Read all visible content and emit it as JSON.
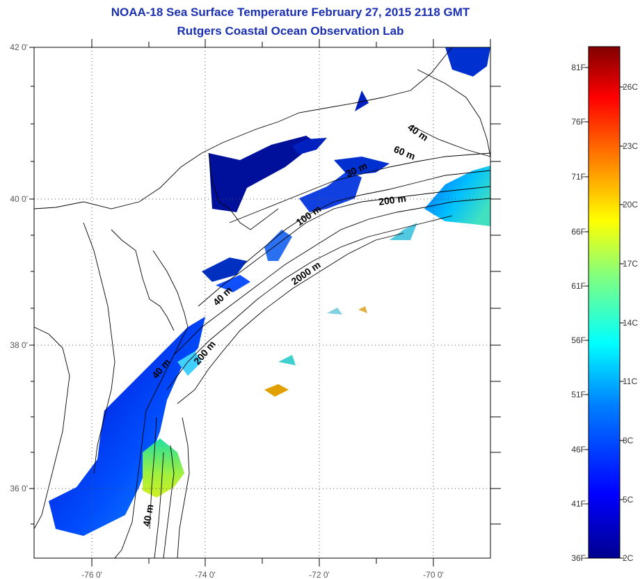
{
  "title": {
    "line1": "NOAA-18 Sea Surface Temperature February 27, 2015 2118 GMT",
    "line2": "Rutgers Coastal Ocean Observation Lab"
  },
  "map": {
    "lat_ticks": [
      "42 0'",
      "40 0'",
      "38 0'",
      "36 0'"
    ],
    "lon_ticks": [
      "-76 0'",
      "-74 0'",
      "-72 0'",
      "-70 0'"
    ],
    "isobath_labels": [
      "40 m",
      "60 m",
      "30 m",
      "200 m",
      "100 m",
      "2000 m",
      "40 m",
      "40 m",
      "200 m",
      "40 m"
    ]
  },
  "colorbar": {
    "fahrenheit_labels": [
      "81F",
      "76F",
      "71F",
      "66F",
      "61F",
      "56F",
      "51F",
      "46F",
      "41F",
      "36F"
    ],
    "celsius_labels": [
      "26C",
      "23C",
      "20C",
      "17C",
      "14C",
      "11C",
      "8C",
      "5C",
      "2C"
    ],
    "colors": [
      "#00008f",
      "#0000ff",
      "#0080ff",
      "#00ffff",
      "#80ff80",
      "#ffff00",
      "#ff8000",
      "#ff0000",
      "#800000"
    ]
  }
}
